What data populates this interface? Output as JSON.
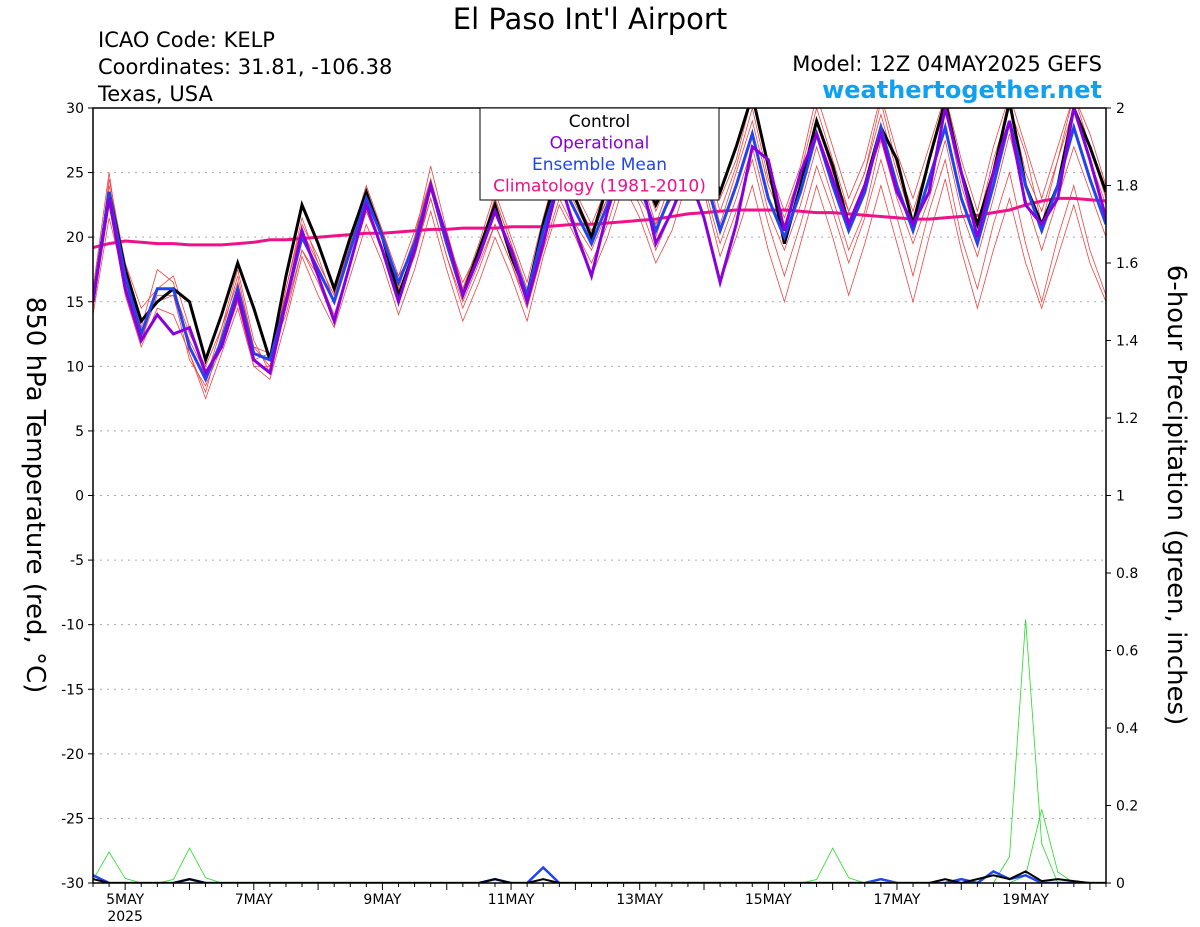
{
  "header": {
    "title": "El Paso Int'l Airport",
    "icao": "ICAO Code: KELP",
    "coordinates": "Coordinates: 31.81, -106.38",
    "region": "Texas, USA",
    "model": "Model: 12Z 04MAY2025 GEFS",
    "site": "weathertogether.net"
  },
  "colors": {
    "control": "#000000",
    "operational": "#8800dd",
    "ensemble_mean": "#2244ee",
    "climatology": "#ee1188",
    "members": "#ee4444",
    "precip": "#22dd22"
  },
  "chart_data": {
    "type": "line",
    "xlabel": "",
    "ylabel": "850 hPa Temperature (red, °C)",
    "y2label": "6-hour Precipitation (green, inches)",
    "ylim": [
      -30,
      30
    ],
    "y2lim": [
      0,
      2
    ],
    "yticks": [
      30,
      25,
      20,
      15,
      10,
      5,
      0,
      -5,
      -10,
      -15,
      -20,
      -25,
      -30
    ],
    "y2ticks": [
      "2",
      "1.8",
      "1.6",
      "1.4",
      "1.2",
      "1",
      "0.8",
      "0.6",
      "0.4",
      "0.2",
      "0"
    ],
    "grid": true,
    "x_start": "2025-05-04 12Z",
    "x_step_hours": 6,
    "xticks": [
      {
        "i": 2,
        "label": "5MAY",
        "sub": "2025"
      },
      {
        "i": 10,
        "label": "7MAY"
      },
      {
        "i": 18,
        "label": "9MAY"
      },
      {
        "i": 26,
        "label": "11MAY"
      },
      {
        "i": 34,
        "label": "13MAY"
      },
      {
        "i": 42,
        "label": "15MAY"
      },
      {
        "i": 50,
        "label": "17MAY"
      },
      {
        "i": 58,
        "label": "19MAY"
      }
    ],
    "legend": {
      "placement": "top-center",
      "entries": [
        {
          "label": "Control",
          "color": "#000000"
        },
        {
          "label": "Operational",
          "color": "#8800dd"
        },
        {
          "label": "Ensemble Mean",
          "color": "#2244ee"
        },
        {
          "label": "Climatology (1981-2010)",
          "color": "#ee1188"
        }
      ]
    },
    "series": [
      {
        "name": "Control",
        "axis": "temp",
        "values": [
          15,
          23.5,
          17.5,
          13.5,
          15,
          16,
          15,
          10.5,
          14,
          18,
          14.5,
          10.5,
          17,
          22.5,
          19.5,
          16,
          20,
          23.5,
          20,
          15.5,
          19,
          24,
          19.5,
          15.5,
          19,
          22.5,
          18.5,
          15.5,
          21,
          25.5,
          23,
          20,
          24,
          27.5,
          25.5,
          22.5,
          25,
          28.5,
          27,
          23.5,
          27,
          31,
          25.5,
          19.5,
          24,
          29,
          25.5,
          21,
          24,
          28.5,
          26,
          21,
          26,
          30.5,
          25,
          21,
          25,
          30.5,
          24,
          21,
          24,
          30,
          27,
          23.5
        ]
      },
      {
        "name": "Operational",
        "axis": "temp",
        "values": [
          15,
          23,
          16,
          12,
          14,
          12.5,
          13,
          9.5,
          11.5,
          15.5,
          10.5,
          9.5,
          15,
          20.5,
          17,
          13.5,
          18,
          22.5,
          19,
          15,
          19,
          24,
          20,
          15.5,
          18.5,
          22,
          19,
          15,
          19.5,
          24.5,
          20.5,
          17,
          22,
          26,
          25,
          19.5,
          22,
          25,
          21.5,
          16.5,
          21,
          27,
          26,
          20.5,
          25,
          28,
          24.5,
          21,
          24,
          28,
          23.5,
          21,
          23.5,
          30,
          25,
          20,
          25,
          29,
          22.5,
          21,
          23,
          30,
          26,
          21.5
        ]
      },
      {
        "name": "Ensemble Mean",
        "axis": "temp",
        "values": [
          15,
          23.5,
          17,
          12.5,
          16,
          16,
          11.5,
          9,
          12,
          16,
          11,
          10.5,
          15,
          20,
          17.5,
          15,
          19,
          23,
          20,
          16.5,
          19.5,
          24,
          19.5,
          15.5,
          18.5,
          22,
          19,
          15.5,
          20.5,
          24.5,
          22,
          19.5,
          22.5,
          26.5,
          24,
          20.5,
          23.5,
          28,
          25,
          20.5,
          24,
          28,
          23,
          20,
          23.5,
          28,
          24,
          20.5,
          23.5,
          28.5,
          24,
          20.5,
          24.5,
          28.5,
          23,
          19.5,
          24,
          29,
          24,
          20.5,
          24,
          28.5,
          24.5,
          21
        ]
      },
      {
        "name": "Climatology (1981-2010)",
        "axis": "temp",
        "values": [
          19.2,
          19.5,
          19.7,
          19.6,
          19.5,
          19.5,
          19.4,
          19.4,
          19.4,
          19.5,
          19.6,
          19.8,
          19.8,
          19.9,
          20,
          20.1,
          20.2,
          20.3,
          20.3,
          20.4,
          20.5,
          20.6,
          20.6,
          20.7,
          20.7,
          20.7,
          20.8,
          20.8,
          20.8,
          20.9,
          21,
          21,
          21.1,
          21.2,
          21.3,
          21.4,
          21.6,
          21.8,
          21.9,
          22,
          22.1,
          22.1,
          22.1,
          22.1,
          22.0,
          21.9,
          21.9,
          21.8,
          21.7,
          21.6,
          21.5,
          21.4,
          21.4,
          21.5,
          21.6,
          21.7,
          21.9,
          22.1,
          22.5,
          22.8,
          23,
          23,
          22.9,
          22.8
        ]
      },
      {
        "axis": "precip",
        "values": [
          0.02,
          0,
          0,
          0,
          0,
          0,
          0.01,
          0,
          0,
          0,
          0,
          0,
          0,
          0,
          0,
          0,
          0,
          0,
          0,
          0,
          0,
          0,
          0,
          0,
          0,
          0.01,
          0,
          0,
          0.04,
          0,
          0,
          0,
          0,
          0,
          0,
          0,
          0,
          0,
          0,
          0,
          0,
          0,
          0,
          0,
          0,
          0,
          0,
          0,
          0,
          0.01,
          0,
          0,
          0,
          0,
          0.01,
          0,
          0.03,
          0.01,
          0.02,
          0,
          0,
          0,
          0,
          0
        ]
      },
      {
        "axis": "precip",
        "values": [
          0.01,
          0,
          0,
          0,
          0,
          0,
          0.01,
          0,
          0,
          0,
          0,
          0,
          0,
          0,
          0,
          0,
          0,
          0,
          0,
          0,
          0,
          0,
          0,
          0,
          0,
          0.01,
          0,
          0,
          0.01,
          0,
          0,
          0,
          0,
          0,
          0,
          0,
          0,
          0,
          0,
          0,
          0,
          0,
          0,
          0,
          0,
          0,
          0,
          0,
          0,
          0,
          0,
          0,
          0,
          0.01,
          0,
          0.01,
          0.02,
          0.01,
          0.03,
          0.005,
          0.01,
          0.005,
          0,
          0
        ]
      }
    ],
    "members_temp": [
      [
        15.5,
        23,
        17,
        13,
        17.5,
        16.5,
        11,
        8,
        12.5,
        17,
        11.5,
        10,
        16,
        21.5,
        18,
        15.5,
        20,
        24,
        20.5,
        16,
        20,
        25.5,
        20.5,
        16,
        19,
        23,
        19.5,
        16,
        21,
        25,
        23,
        20.5,
        23,
        27,
        24.5,
        20,
        24,
        29,
        26,
        21,
        25,
        29,
        24,
        21,
        24.5,
        29,
        25,
        22,
        25,
        29.5,
        25,
        21,
        26,
        30,
        24,
        20,
        25,
        30.5,
        25,
        22,
        26,
        30,
        26,
        22.5
      ],
      [
        14.5,
        24.5,
        18,
        13.5,
        15,
        15.5,
        12,
        9.5,
        12,
        15.5,
        10.5,
        11,
        14,
        19,
        17,
        14,
        18,
        22,
        19,
        17,
        19,
        23,
        18.5,
        15,
        18,
        21,
        18,
        15,
        20,
        24,
        21,
        19,
        22,
        26,
        23,
        21,
        23,
        27,
        24,
        19.5,
        23,
        27,
        22,
        19,
        22.5,
        27,
        23,
        19,
        22,
        27.5,
        23,
        19.5,
        23,
        27.5,
        22,
        18.5,
        23,
        28,
        23,
        19,
        23,
        27,
        23.5,
        20
      ],
      [
        16,
        25,
        16.5,
        12,
        16,
        17,
        13,
        9,
        13,
        17.5,
        12,
        9.5,
        16,
        21,
        18.5,
        15,
        19.5,
        23.5,
        20.5,
        16.5,
        20,
        24.5,
        20,
        16.5,
        19,
        23,
        19.5,
        15.5,
        21,
        25.5,
        22.5,
        20,
        23,
        27.5,
        25,
        21,
        24.5,
        29.5,
        26.5,
        22,
        25.5,
        30,
        24.5,
        21.5,
        25,
        30,
        26,
        22,
        25,
        30.5,
        25.5,
        22,
        26,
        31,
        25,
        21,
        26,
        30,
        26.5,
        21,
        26,
        31,
        27,
        23
      ],
      [
        14,
        21.5,
        16.5,
        12,
        15.5,
        15.5,
        10.5,
        8.5,
        11.5,
        15,
        10,
        10,
        14.5,
        19,
        16.5,
        13.5,
        18,
        22,
        19,
        15.5,
        18.5,
        23,
        18.5,
        14.5,
        17.5,
        21,
        18,
        14.5,
        19,
        23,
        20.5,
        18,
        21,
        25,
        22.5,
        19,
        22,
        26.5,
        23.5,
        18.5,
        22,
        26,
        21,
        17,
        21,
        25.5,
        22,
        18,
        21.5,
        26,
        21.5,
        17,
        22,
        26,
        20,
        16,
        21,
        25,
        19.5,
        15,
        20,
        24,
        19,
        15.5
      ],
      [
        15,
        24,
        18,
        14.5,
        16,
        16,
        12.5,
        10,
        13,
        16.5,
        11.5,
        11,
        15.5,
        20.5,
        18,
        15.5,
        19.5,
        23.5,
        20.5,
        17,
        20.5,
        24.5,
        20,
        16,
        19.5,
        23.5,
        20,
        16.5,
        21.5,
        26,
        23.5,
        21,
        24,
        28,
        25.5,
        22,
        25,
        30,
        27,
        23,
        26,
        31,
        25.5,
        22,
        25.5,
        31,
        27,
        23,
        26,
        31,
        26.5,
        23,
        27,
        31,
        26,
        22,
        27,
        31,
        27,
        23,
        27,
        31,
        28,
        24
      ],
      [
        15.5,
        22.5,
        15.5,
        11.5,
        14.5,
        14,
        11,
        7.5,
        11,
        14.5,
        10,
        9,
        13.5,
        18.5,
        15.5,
        13,
        17,
        21,
        18,
        14,
        17.5,
        22,
        17.5,
        13.5,
        16.5,
        20,
        17,
        13.5,
        18.5,
        22.5,
        20,
        17,
        20,
        24,
        21.5,
        18,
        20.5,
        24.5,
        21.5,
        16.5,
        20,
        24,
        19,
        15,
        19.5,
        24,
        20,
        15.5,
        19.5,
        24,
        19.5,
        15,
        20,
        24.5,
        19,
        14.5,
        19,
        23,
        18,
        14.5,
        18.5,
        22.5,
        18,
        15
      ]
    ],
    "members_precip_peaks": [
      {
        "i": 58,
        "value": 0.68
      },
      {
        "i": 59,
        "value": 0.19
      },
      {
        "i": 1,
        "value": 0.08
      },
      {
        "i": 6,
        "value": 0.09
      },
      {
        "i": 46,
        "value": 0.09
      }
    ]
  }
}
